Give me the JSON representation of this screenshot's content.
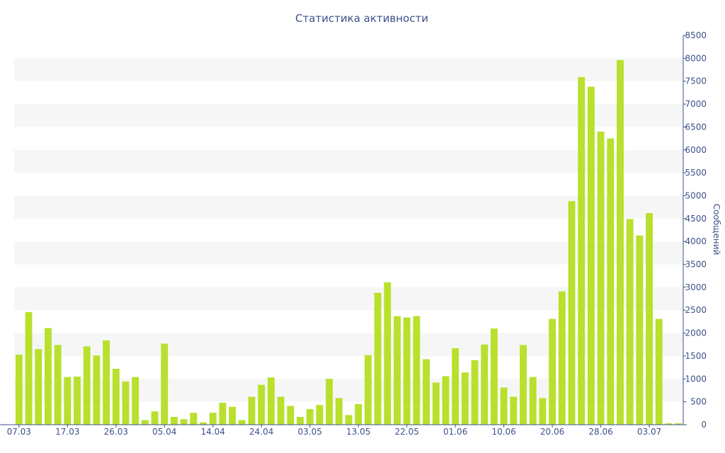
{
  "chart_data": {
    "type": "bar",
    "title": "Статистика активности",
    "ylabel": "Сообщений",
    "xlabel": "",
    "ylim": [
      0,
      8500
    ],
    "ytick_step": 500,
    "x_tick_labels": [
      "07.03",
      "17.03",
      "26.03",
      "05.04",
      "14.04",
      "24.04",
      "03.05",
      "13.05",
      "22.05",
      "01.06",
      "10.06",
      "20.06",
      "28.06",
      "03.07"
    ],
    "x_tick_bar_index": [
      0,
      5,
      10,
      15,
      20,
      25,
      30,
      35,
      40,
      45,
      50,
      55,
      60,
      65
    ],
    "values": [
      1530,
      2460,
      1650,
      2110,
      1740,
      1040,
      1050,
      1710,
      1510,
      1840,
      1220,
      940,
      1040,
      100,
      290,
      1770,
      170,
      120,
      260,
      50,
      260,
      480,
      390,
      100,
      610,
      870,
      1030,
      610,
      410,
      170,
      340,
      430,
      1000,
      580,
      210,
      450,
      1520,
      2880,
      3110,
      2370,
      2340,
      2370,
      1430,
      920,
      1060,
      1670,
      1140,
      1410,
      1750,
      2100,
      810,
      610,
      1740,
      1040,
      580,
      2310,
      2910,
      4880,
      7590,
      7380,
      6400,
      6250,
      7960,
      4490,
      4130,
      4620,
      2310,
      30,
      30
    ],
    "bar_color": "#b8e02c",
    "band_color": "#f6f6f6",
    "axis_color": "#3d5189",
    "grid": true,
    "legend": "none"
  }
}
